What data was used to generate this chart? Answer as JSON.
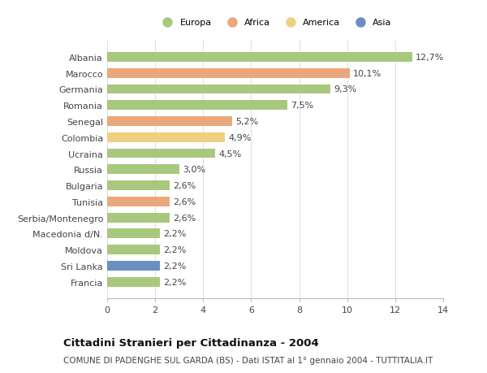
{
  "categories": [
    "Albania",
    "Marocco",
    "Germania",
    "Romania",
    "Senegal",
    "Colombia",
    "Ucraina",
    "Russia",
    "Bulgaria",
    "Tunisia",
    "Serbia/Montenegro",
    "Macedonia d/N.",
    "Moldova",
    "Sri Lanka",
    "Francia"
  ],
  "values": [
    12.7,
    10.1,
    9.3,
    7.5,
    5.2,
    4.9,
    4.5,
    3.0,
    2.6,
    2.6,
    2.6,
    2.2,
    2.2,
    2.2,
    2.2
  ],
  "labels": [
    "12,7%",
    "10,1%",
    "9,3%",
    "7,5%",
    "5,2%",
    "4,9%",
    "4,5%",
    "3,0%",
    "2,6%",
    "2,6%",
    "2,6%",
    "2,2%",
    "2,2%",
    "2,2%",
    "2,2%"
  ],
  "continents": [
    "Europa",
    "Africa",
    "Europa",
    "Europa",
    "Africa",
    "America",
    "Europa",
    "Europa",
    "Europa",
    "Africa",
    "Europa",
    "Europa",
    "Europa",
    "Asia",
    "Europa"
  ],
  "colors": {
    "Europa": "#a8c87e",
    "Africa": "#e9a87c",
    "America": "#f0d080",
    "Asia": "#6b8ec2"
  },
  "xlim": [
    0,
    14
  ],
  "xticks": [
    0,
    2,
    4,
    6,
    8,
    10,
    12,
    14
  ],
  "title": "Cittadini Stranieri per Cittadinanza - 2004",
  "subtitle": "COMUNE DI PADENGHE SUL GARDA (BS) - Dati ISTAT al 1° gennaio 2004 - TUTTITALIA.IT",
  "background_color": "#ffffff",
  "grid_color": "#e0e0e0",
  "bar_height": 0.6,
  "label_fontsize": 8.0,
  "tick_fontsize": 8.0,
  "title_fontsize": 9.5,
  "subtitle_fontsize": 7.5,
  "legend_order": [
    "Europa",
    "Africa",
    "America",
    "Asia"
  ]
}
